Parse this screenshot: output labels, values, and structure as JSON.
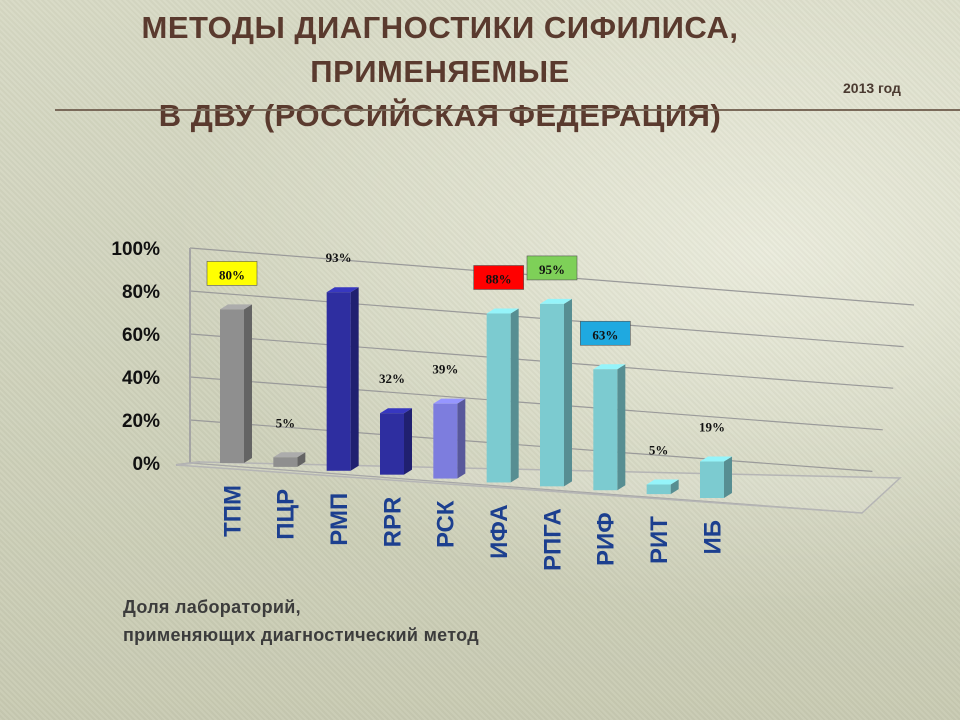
{
  "title_lines": [
    "МЕТОДЫ ДИАГНОСТИКИ СИФИЛИСА,",
    "ПРИМЕНЯЕМЫЕ",
    "В ДВУ (РОССИЙСКАЯ ФЕДЕРАЦИЯ)"
  ],
  "year_label": "2013 год",
  "caption_lines": [
    "Доля лабораторий,",
    "применяющих диагностический метод"
  ],
  "chart_data": {
    "type": "bar",
    "categories": [
      "ТПМ",
      "ПЦР",
      "РМП",
      "RPR",
      "РСК",
      "ИФА",
      "РПГА",
      "РИФ",
      "РИТ",
      "ИБ"
    ],
    "values": [
      80,
      5,
      93,
      32,
      39,
      88,
      95,
      63,
      5,
      19
    ],
    "data_labels": [
      "80%",
      "5%",
      "93%",
      "32%",
      "39%",
      "88%",
      "95%",
      "63%",
      "5%",
      "19%"
    ],
    "ylim": [
      0,
      100
    ],
    "yticks": [
      "0%",
      "20%",
      "40%",
      "60%",
      "80%",
      "100%"
    ],
    "grid": true,
    "bar_colors": [
      "#8f8f8f",
      "#8f8f8f",
      "#2e2ea0",
      "#2e2ea0",
      "#7d7dde",
      "#7ccbd0",
      "#7ccbd0",
      "#7ccbd0",
      "#7ccbd0",
      "#7ccbd0"
    ],
    "label_box_colors": [
      "#ffff00",
      null,
      null,
      null,
      null,
      "#ff0000",
      "#7ed058",
      "#1fa9e0",
      null,
      null
    ],
    "category_label_color": "#1c3f8f"
  }
}
